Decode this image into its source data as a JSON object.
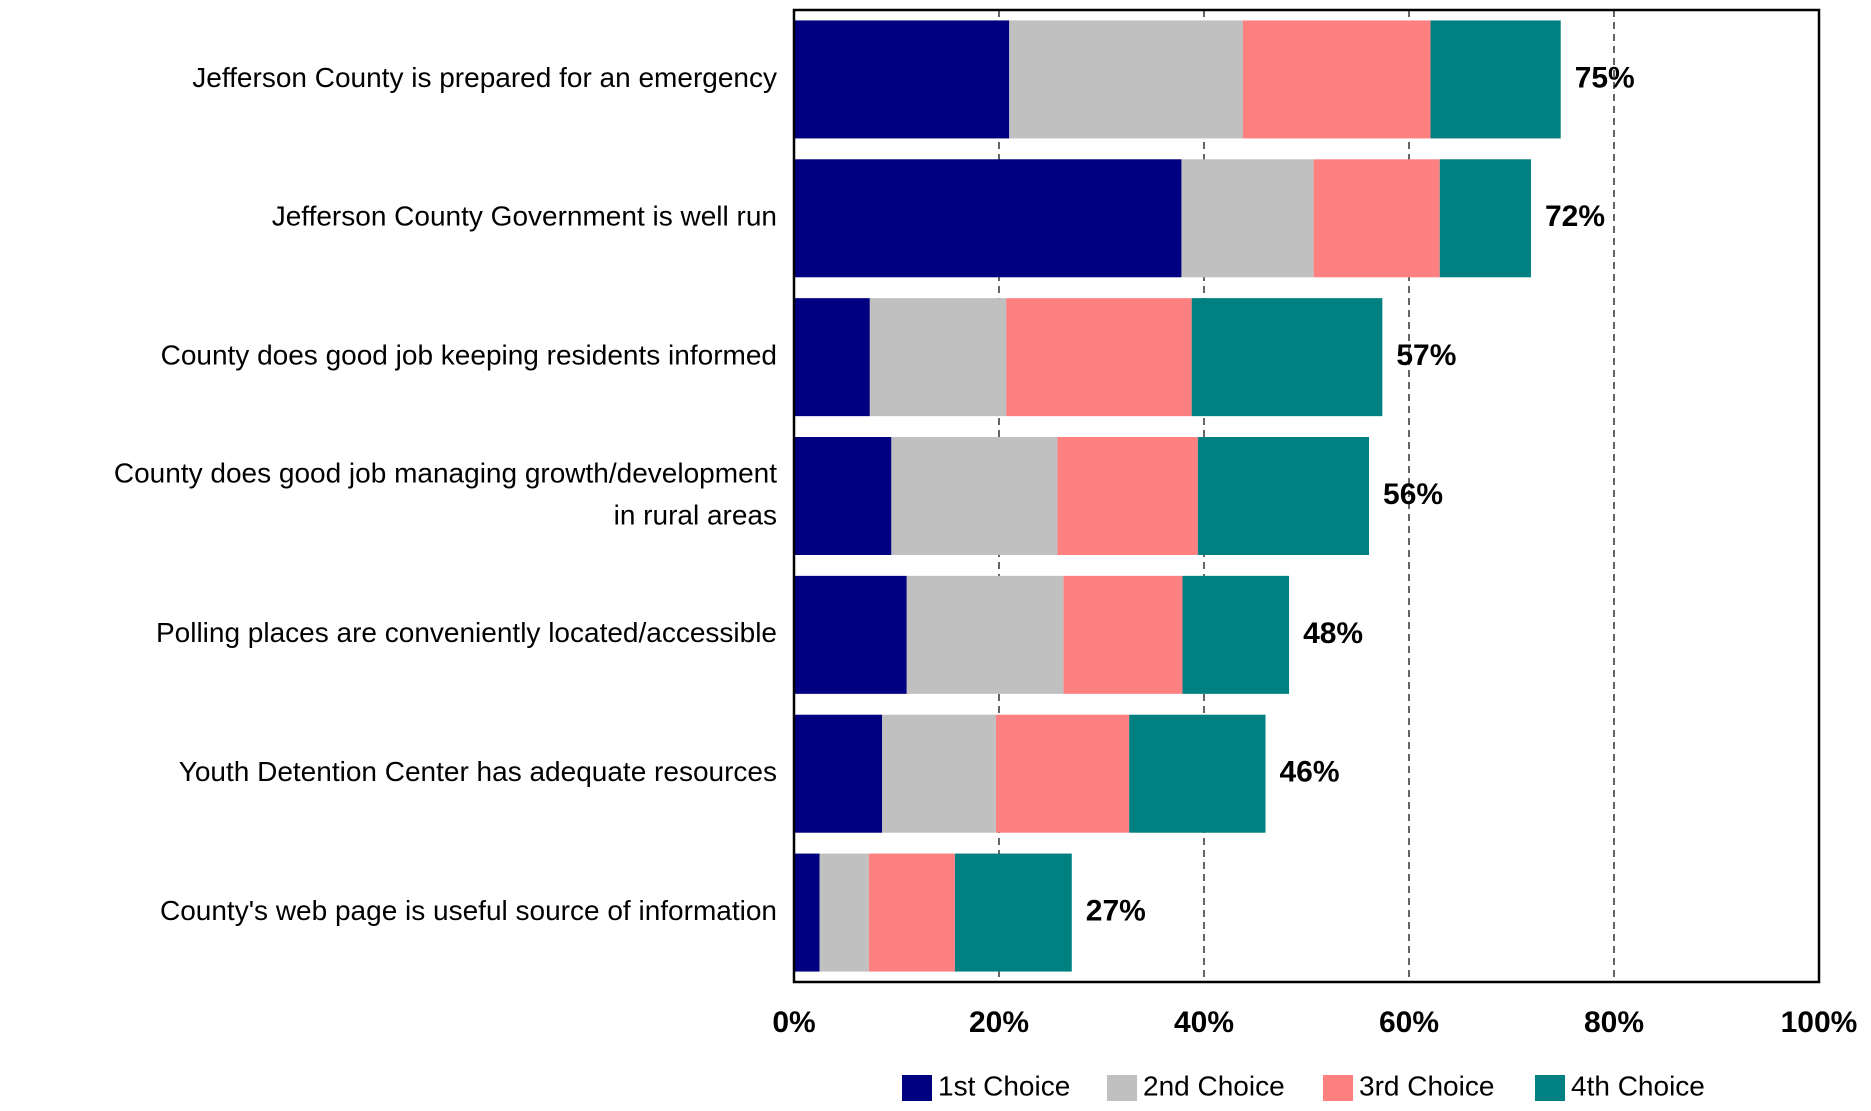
{
  "chart_data": {
    "type": "bar",
    "orientation": "horizontal",
    "stacked": true,
    "categories": [
      [
        "Jefferson County is prepared for an emergency"
      ],
      [
        "Jefferson County Government is well run"
      ],
      [
        "County does good job keeping residents informed"
      ],
      [
        "County does good job managing growth/development",
        "in rural areas"
      ],
      [
        "Polling places are conveniently located/accessible"
      ],
      [
        "Youth Detention Center has adequate resources"
      ],
      [
        "County's web page is useful source of information"
      ]
    ],
    "series": [
      {
        "name": "1st Choice",
        "color": "#000080",
        "values": [
          21,
          37.8,
          7.4,
          9.5,
          11,
          8.6,
          2.5
        ]
      },
      {
        "name": "2nd Choice",
        "color": "#c0c0c0",
        "values": [
          22.8,
          12.9,
          13.3,
          16.2,
          15.3,
          11.1,
          4.8
        ]
      },
      {
        "name": "3rd Choice",
        "color": "#ff8080",
        "values": [
          18.3,
          12.3,
          18.1,
          13.7,
          11.6,
          13,
          8.4
        ]
      },
      {
        "name": "4th Choice",
        "color": "#008080",
        "values": [
          12.7,
          8.9,
          18.6,
          16.7,
          10.4,
          13.3,
          11.4
        ]
      }
    ],
    "totals": [
      "75%",
      "72%",
      "57%",
      "56%",
      "48%",
      "46%",
      "27%"
    ],
    "xlim": [
      0,
      100
    ],
    "xticks": [
      0,
      20,
      40,
      60,
      80,
      100
    ],
    "xtick_labels": [
      "0%",
      "20%",
      "40%",
      "60%",
      "80%",
      "100%"
    ],
    "grid": "vertical dashed",
    "legend": "bottom"
  }
}
